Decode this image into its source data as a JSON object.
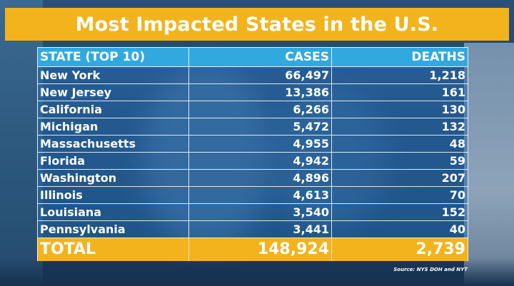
{
  "title": "Most Impacted States in the U.S.",
  "colors": {
    "title_bar": "#f2b31c",
    "header_row": "#31a9df",
    "total_row": "#f2b31c",
    "text": "#ffffff"
  },
  "table": {
    "headers": {
      "state": "STATE (TOP 10)",
      "cases": "CASES",
      "deaths": "DEATHS"
    },
    "rows": [
      {
        "state": "New York",
        "cases": "66,497",
        "deaths": "1,218"
      },
      {
        "state": "New Jersey",
        "cases": "13,386",
        "deaths": "161"
      },
      {
        "state": "California",
        "cases": "6,266",
        "deaths": "130"
      },
      {
        "state": "Michigan",
        "cases": "5,472",
        "deaths": "132"
      },
      {
        "state": "Massachusetts",
        "cases": "4,955",
        "deaths": "48"
      },
      {
        "state": "Florida",
        "cases": "4,942",
        "deaths": "59"
      },
      {
        "state": "Washington",
        "cases": "4,896",
        "deaths": "207"
      },
      {
        "state": "Illinois",
        "cases": "4,613",
        "deaths": "70"
      },
      {
        "state": "Louisiana",
        "cases": "3,540",
        "deaths": "152"
      },
      {
        "state": "Pennsylvania",
        "cases": "3,441",
        "deaths": "40"
      }
    ],
    "total": {
      "label": "TOTAL",
      "cases": "148,924",
      "deaths": "2,739"
    }
  },
  "source": "Source: NYS DOH and NYT"
}
